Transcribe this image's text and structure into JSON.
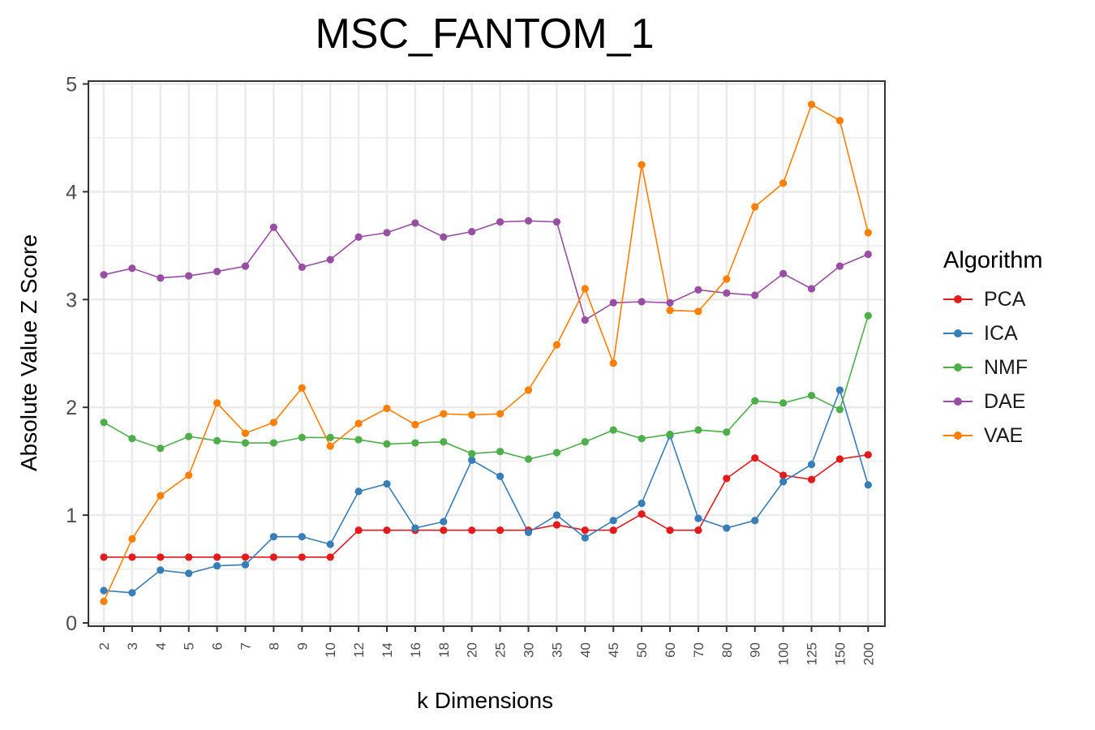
{
  "chart_data": {
    "type": "line",
    "title": "MSC_FANTOM_1",
    "xlabel": "k Dimensions",
    "ylabel": "Absolute Value Z Score",
    "categories": [
      "2",
      "3",
      "4",
      "5",
      "6",
      "7",
      "8",
      "9",
      "10",
      "12",
      "14",
      "16",
      "18",
      "20",
      "25",
      "30",
      "35",
      "40",
      "45",
      "50",
      "60",
      "70",
      "80",
      "90",
      "100",
      "125",
      "150",
      "200"
    ],
    "ylim": [
      0,
      5
    ],
    "yticks": [
      0,
      1,
      2,
      3,
      4,
      5
    ],
    "grid": true,
    "legend_title": "Algorithm",
    "legend_position": "right",
    "series": [
      {
        "name": "PCA",
        "color": "#e41a1c",
        "values": [
          0.61,
          0.61,
          0.61,
          0.61,
          0.61,
          0.61,
          0.61,
          0.61,
          0.61,
          0.86,
          0.86,
          0.86,
          0.86,
          0.86,
          0.86,
          0.86,
          0.91,
          0.86,
          0.86,
          1.01,
          0.86,
          0.86,
          1.34,
          1.53,
          1.37,
          1.33,
          1.52,
          1.56
        ]
      },
      {
        "name": "ICA",
        "color": "#377eb8",
        "values": [
          0.3,
          0.28,
          0.49,
          0.46,
          0.53,
          0.54,
          0.8,
          0.8,
          0.73,
          1.22,
          1.29,
          0.88,
          0.94,
          1.51,
          1.36,
          0.84,
          1.0,
          0.79,
          0.95,
          1.11,
          1.74,
          0.97,
          0.88,
          0.95,
          1.31,
          1.47,
          2.16,
          1.28
        ]
      },
      {
        "name": "NMF",
        "color": "#4daf4a",
        "values": [
          1.86,
          1.71,
          1.62,
          1.73,
          1.69,
          1.67,
          1.67,
          1.72,
          1.72,
          1.7,
          1.66,
          1.67,
          1.68,
          1.57,
          1.59,
          1.52,
          1.58,
          1.68,
          1.79,
          1.71,
          1.75,
          1.79,
          1.77,
          2.06,
          2.04,
          2.11,
          1.98,
          2.85
        ]
      },
      {
        "name": "DAE",
        "color": "#984ea3",
        "values": [
          3.23,
          3.29,
          3.2,
          3.22,
          3.26,
          3.31,
          3.67,
          3.3,
          3.37,
          3.58,
          3.62,
          3.71,
          3.58,
          3.63,
          3.72,
          3.73,
          3.72,
          2.81,
          2.97,
          2.98,
          2.97,
          3.09,
          3.06,
          3.04,
          3.24,
          3.1,
          3.31,
          3.42
        ]
      },
      {
        "name": "VAE",
        "color": "#ff7f00",
        "values": [
          0.2,
          0.78,
          1.18,
          1.37,
          2.04,
          1.76,
          1.86,
          2.18,
          1.64,
          1.85,
          1.99,
          1.84,
          1.94,
          1.93,
          1.94,
          2.16,
          2.58,
          3.1,
          2.41,
          4.25,
          2.9,
          2.89,
          3.19,
          3.86,
          4.08,
          4.81,
          4.66,
          3.62
        ]
      }
    ]
  }
}
